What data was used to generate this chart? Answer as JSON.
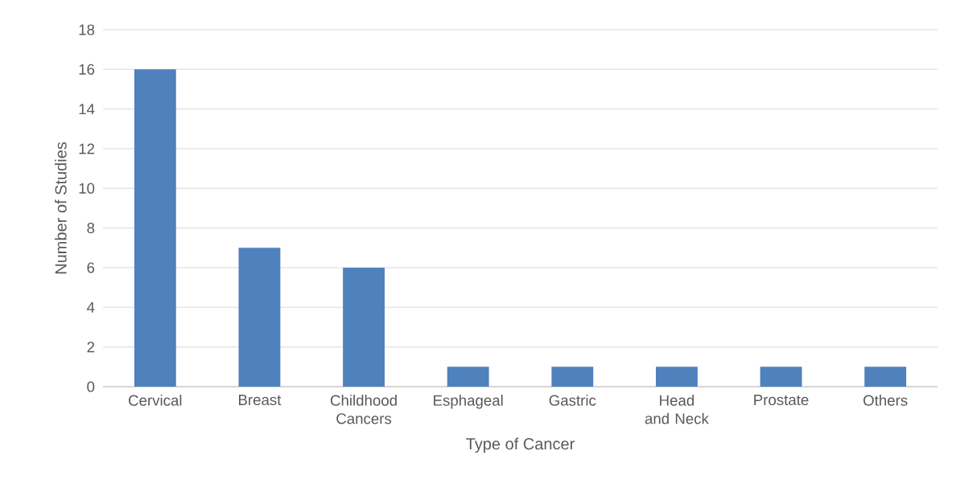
{
  "chart_data": {
    "type": "bar",
    "xlabel": "Type of Cancer",
    "ylabel": "Number of Studies",
    "categories": [
      "Cervical",
      "Breast",
      "Childhood Cancers",
      "Esphageal",
      "Gastric",
      "Head and Neck",
      "Prostate",
      "Others"
    ],
    "values": [
      16,
      7,
      6,
      1,
      1,
      1,
      1,
      1
    ],
    "color": "#4f81bd",
    "ylim": [
      0,
      18
    ],
    "yticks": [
      0,
      2,
      4,
      6,
      8,
      10,
      12,
      14,
      16,
      18
    ],
    "grid": "y"
  }
}
